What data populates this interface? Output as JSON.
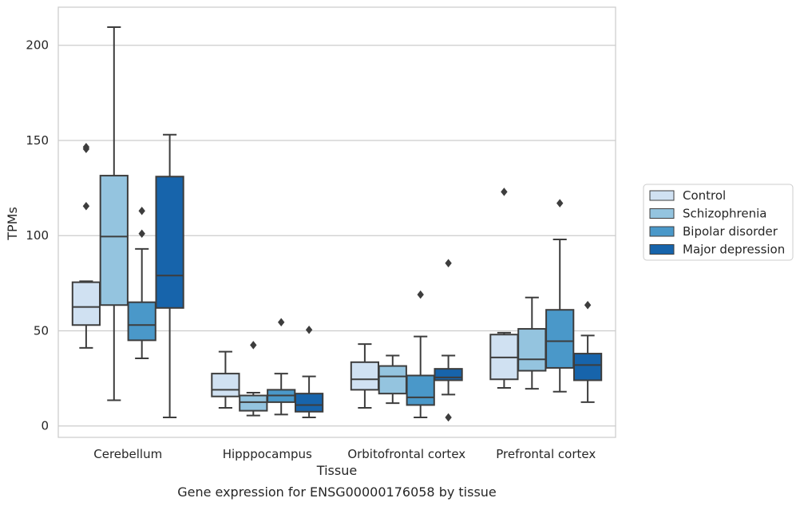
{
  "chart_data": {
    "type": "box",
    "title": "",
    "caption": "Gene expression for ENSG00000176058 by tissue",
    "xlabel": "Tissue",
    "ylabel": "TPMs",
    "ylim": [
      -6,
      220
    ],
    "yticks": [
      0,
      50,
      100,
      150,
      200
    ],
    "grid": "horizontal",
    "legend_position": "right",
    "categories": [
      "Cerebellum",
      "Hipppocampus",
      "Orbitofrontal cortex",
      "Prefrontal cortex"
    ],
    "series": [
      {
        "name": "Control",
        "color": "#d0e1f2",
        "boxes": [
          {
            "whislo": 41,
            "q1": 53,
            "med": 62.5,
            "q3": 75.5,
            "whishi": 76,
            "fliers": [
              115.5,
              145.5,
              146.5
            ]
          },
          {
            "whislo": 9.5,
            "q1": 15.5,
            "med": 19,
            "q3": 27.5,
            "whishi": 39,
            "fliers": []
          },
          {
            "whislo": 9.5,
            "q1": 19,
            "med": 24.5,
            "q3": 33.5,
            "whishi": 43,
            "fliers": []
          },
          {
            "whislo": 20,
            "q1": 24.5,
            "med": 36,
            "q3": 48,
            "whishi": 49,
            "fliers": [
              123
            ]
          }
        ]
      },
      {
        "name": "Schizophrenia",
        "color": "#94c4df",
        "boxes": [
          {
            "whislo": 13.5,
            "q1": 63.5,
            "med": 99.5,
            "q3": 131.5,
            "whishi": 209.5,
            "fliers": []
          },
          {
            "whislo": 5.5,
            "q1": 8,
            "med": 12.5,
            "q3": 16,
            "whishi": 17.5,
            "fliers": [
              42.5
            ]
          },
          {
            "whislo": 12,
            "q1": 17,
            "med": 26,
            "q3": 31.5,
            "whishi": 37,
            "fliers": []
          },
          {
            "whislo": 19.5,
            "q1": 29,
            "med": 35,
            "q3": 51,
            "whishi": 67.5,
            "fliers": []
          }
        ]
      },
      {
        "name": "Bipolar disorder",
        "color": "#4a98c9",
        "boxes": [
          {
            "whislo": 35.5,
            "q1": 45,
            "med": 53,
            "q3": 65,
            "whishi": 93,
            "fliers": [
              101,
              113
            ]
          },
          {
            "whislo": 6,
            "q1": 12.5,
            "med": 16,
            "q3": 19,
            "whishi": 27.5,
            "fliers": [
              54.5
            ]
          },
          {
            "whislo": 4.5,
            "q1": 11,
            "med": 15,
            "q3": 26.5,
            "whishi": 47,
            "fliers": [
              69
            ]
          },
          {
            "whislo": 18,
            "q1": 30.5,
            "med": 44.5,
            "q3": 61,
            "whishi": 98,
            "fliers": [
              117
            ]
          }
        ]
      },
      {
        "name": "Major depression",
        "color": "#1764ab",
        "boxes": [
          {
            "whislo": 4.5,
            "q1": 62,
            "med": 79,
            "q3": 131,
            "whishi": 153,
            "fliers": []
          },
          {
            "whislo": 4.5,
            "q1": 7.5,
            "med": 11,
            "q3": 17,
            "whishi": 26,
            "fliers": [
              50.5
            ]
          },
          {
            "whislo": 16.5,
            "q1": 24,
            "med": 25.5,
            "q3": 30,
            "whishi": 37,
            "fliers": [
              4.5,
              85.5
            ]
          },
          {
            "whislo": 12.5,
            "q1": 24,
            "med": 32,
            "q3": 38,
            "whishi": 47.5,
            "fliers": [
              63.5
            ]
          }
        ]
      }
    ]
  }
}
